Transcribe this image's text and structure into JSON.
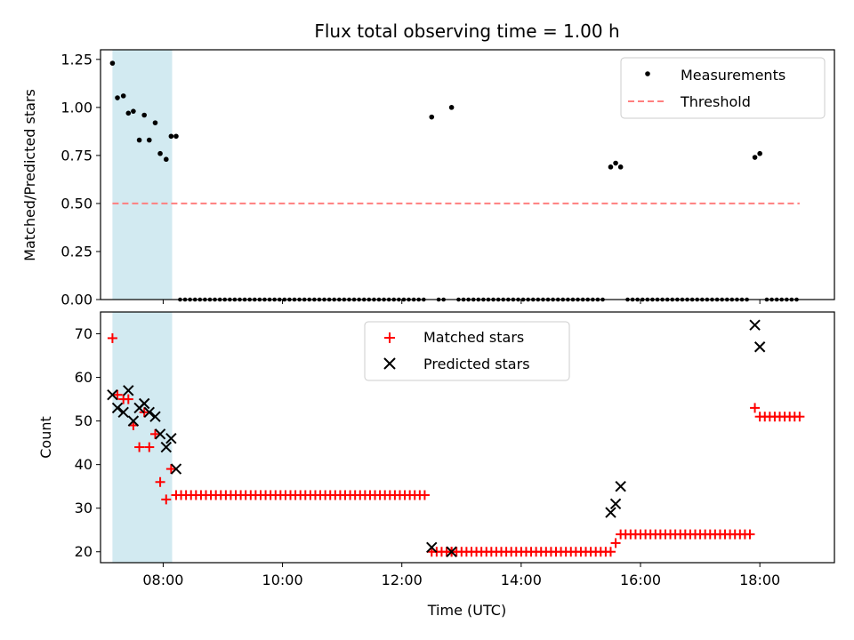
{
  "chart_data": [
    {
      "type": "scatter",
      "title": "Flux total observing time = 1.00 h",
      "ylabel": "Matched/Predicted stars",
      "xlabel": "",
      "xlim": [
        "06:57",
        "19:15"
      ],
      "ylim": [
        0,
        1.3
      ],
      "y_ticks": [
        "0.00",
        "0.25",
        "0.50",
        "0.75",
        "1.00",
        "1.25"
      ],
      "legend_position": "top-right",
      "highlight_span": {
        "start": "07:09",
        "end": "08:09",
        "color": "#add8e6"
      },
      "series": [
        {
          "name": "Measurements",
          "color": "#000000",
          "points": [
            [
              "07:09",
              1.23
            ],
            [
              "07:14",
              1.05
            ],
            [
              "07:20",
              1.06
            ],
            [
              "07:25",
              0.97
            ],
            [
              "07:30",
              0.98
            ],
            [
              "07:36",
              0.83
            ],
            [
              "07:41",
              0.96
            ],
            [
              "07:46",
              0.83
            ],
            [
              "07:52",
              0.92
            ],
            [
              "07:57",
              0.76
            ],
            [
              "08:03",
              0.73
            ],
            [
              "08:08",
              0.85
            ],
            [
              "08:13",
              0.85
            ],
            [
              "12:30",
              0.95
            ],
            [
              "12:50",
              1.0
            ],
            [
              "15:30",
              0.69
            ],
            [
              "15:35",
              0.71
            ],
            [
              "15:40",
              0.69
            ],
            [
              "17:55",
              0.74
            ],
            [
              "18:00",
              0.76
            ]
          ],
          "zero_valued_points_from": "08:12",
          "zero_valued_points_to": "18:40",
          "zero_value": 0
        },
        {
          "name": "Threshold",
          "color": "#ff7f7f",
          "style": "dashed",
          "x": [
            "07:09",
            "18:40"
          ],
          "values": [
            0.5,
            0.5
          ]
        }
      ]
    },
    {
      "type": "scatter",
      "title": "",
      "ylabel": "Count",
      "xlabel": "Time (UTC)",
      "x_ticks": [
        "08:00",
        "10:00",
        "12:00",
        "14:00",
        "16:00",
        "18:00"
      ],
      "y_ticks": [
        "20",
        "30",
        "40",
        "50",
        "60",
        "70"
      ],
      "ylim": [
        17.5,
        75
      ],
      "legend_position": "top-center",
      "series": [
        {
          "name": "Matched stars",
          "marker": "+",
          "color": "#ff0000",
          "points": [
            [
              "07:09",
              69
            ],
            [
              "07:14",
              56
            ],
            [
              "07:20",
              55
            ],
            [
              "07:25",
              55
            ],
            [
              "07:30",
              49
            ],
            [
              "07:36",
              44
            ],
            [
              "07:41",
              52
            ],
            [
              "07:46",
              44
            ],
            [
              "07:52",
              47
            ],
            [
              "07:57",
              36
            ],
            [
              "08:03",
              32
            ],
            [
              "08:08",
              39
            ],
            [
              "08:13",
              33
            ],
            [
              "12:30",
              20
            ],
            [
              "12:50",
              20
            ],
            [
              "15:30",
              20
            ],
            [
              "15:35",
              22
            ],
            [
              "15:40",
              24
            ],
            [
              "17:55",
              53
            ],
            [
              "18:00",
              51
            ]
          ],
          "plateaus": [
            {
              "from": "08:18",
              "to": "12:25",
              "value": 33
            },
            {
              "from": "12:35",
              "to": "15:25",
              "value": 20
            },
            {
              "from": "15:45",
              "to": "17:50",
              "value": 24
            },
            {
              "from": "18:05",
              "to": "18:40",
              "value": 51
            }
          ]
        },
        {
          "name": "Predicted stars",
          "marker": "x",
          "color": "#000000",
          "points": [
            [
              "07:09",
              56
            ],
            [
              "07:14",
              53
            ],
            [
              "07:20",
              52
            ],
            [
              "07:25",
              57
            ],
            [
              "07:30",
              50
            ],
            [
              "07:36",
              53
            ],
            [
              "07:41",
              54
            ],
            [
              "07:46",
              52
            ],
            [
              "07:52",
              51
            ],
            [
              "07:57",
              47
            ],
            [
              "08:03",
              44
            ],
            [
              "08:08",
              46
            ],
            [
              "08:13",
              39
            ],
            [
              "12:30",
              21
            ],
            [
              "12:50",
              20
            ],
            [
              "15:30",
              29
            ],
            [
              "15:35",
              31
            ],
            [
              "15:40",
              35
            ],
            [
              "17:55",
              72
            ],
            [
              "18:00",
              67
            ]
          ]
        }
      ]
    }
  ]
}
